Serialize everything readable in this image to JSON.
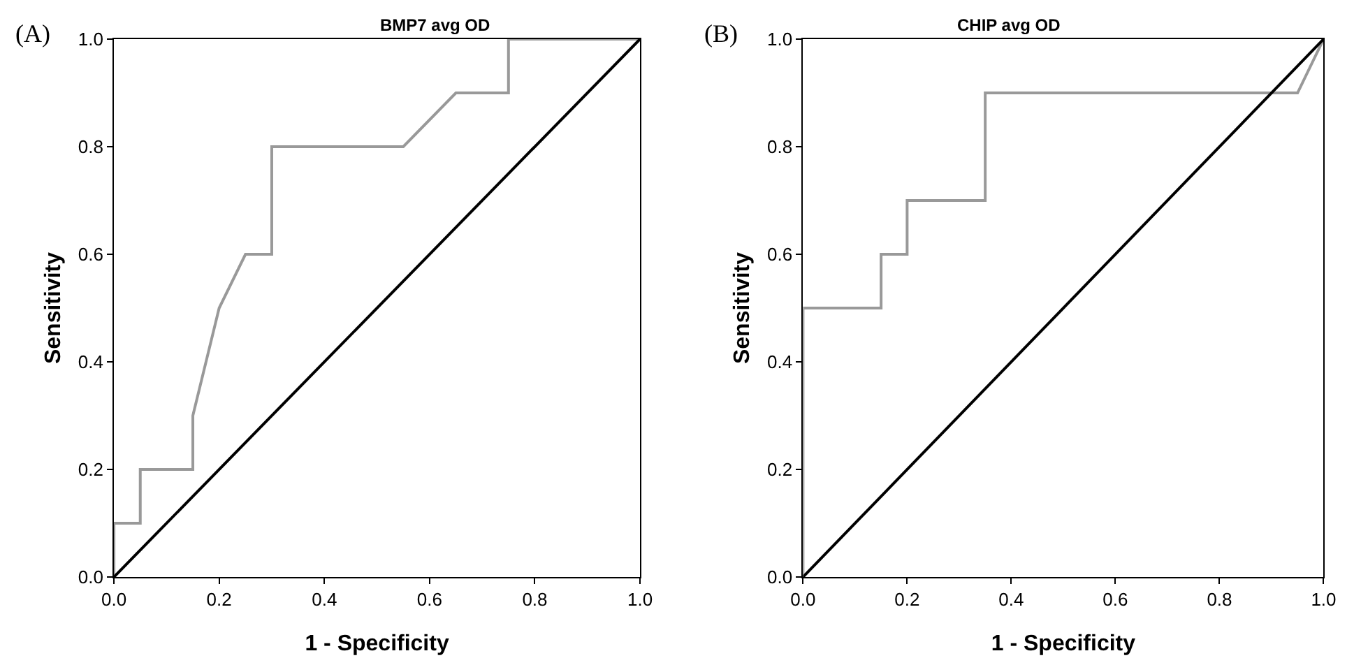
{
  "chart_data": [
    {
      "type": "line",
      "title": "BMP7 avg OD",
      "xlabel": "1 - Specificity",
      "ylabel": "Sensitivity",
      "annotations": [
        "(A)"
      ],
      "xlim": [
        0,
        1
      ],
      "ylim": [
        0,
        1
      ],
      "xticks": [
        {
          "value": 0,
          "label": "0.0"
        },
        {
          "value": 0.2,
          "label": "0.2"
        },
        {
          "value": 0.4,
          "label": "0.4"
        },
        {
          "value": 0.6,
          "label": "0.6"
        },
        {
          "value": 0.8,
          "label": "0.8"
        },
        {
          "value": 1,
          "label": "1.0"
        }
      ],
      "yticks": [
        {
          "value": 0,
          "label": "0.0"
        },
        {
          "value": 0.2,
          "label": "0.2"
        },
        {
          "value": 0.4,
          "label": "0.4"
        },
        {
          "value": 0.6,
          "label": "0.6"
        },
        {
          "value": 0.8,
          "label": "0.8"
        },
        {
          "value": 1,
          "label": "1.0"
        }
      ],
      "marker": "none",
      "line_style": "solid",
      "series": [
        {
          "color": "#999999",
          "x": [
            0,
            0,
            0.05,
            0.05,
            0.15,
            0.15,
            0.2,
            0.25,
            0.3,
            0.3,
            0.55,
            0.65,
            0.75,
            0.75,
            1
          ],
          "values": [
            0,
            0.1,
            0.1,
            0.2,
            0.2,
            0.3,
            0.5,
            0.6,
            0.6,
            0.8,
            0.8,
            0.9,
            0.9,
            1,
            1
          ]
        },
        {
          "color": "#000000",
          "x": [
            0,
            1
          ],
          "values": [
            0,
            1
          ]
        }
      ]
    },
    {
      "type": "line",
      "title": "CHIP avg OD",
      "xlabel": "1 - Specificity",
      "ylabel": "Sensitivity",
      "annotations": [
        "(B)"
      ],
      "xlim": [
        0,
        1
      ],
      "ylim": [
        0,
        1
      ],
      "xticks": [
        {
          "value": 0,
          "label": "0.0"
        },
        {
          "value": 0.2,
          "label": "0.2"
        },
        {
          "value": 0.4,
          "label": "0.4"
        },
        {
          "value": 0.6,
          "label": "0.6"
        },
        {
          "value": 0.8,
          "label": "0.8"
        },
        {
          "value": 1,
          "label": "1.0"
        }
      ],
      "yticks": [
        {
          "value": 0,
          "label": "0.0"
        },
        {
          "value": 0.2,
          "label": "0.2"
        },
        {
          "value": 0.4,
          "label": "0.4"
        },
        {
          "value": 0.6,
          "label": "0.6"
        },
        {
          "value": 0.8,
          "label": "0.8"
        },
        {
          "value": 1,
          "label": "1.0"
        }
      ],
      "marker": "none",
      "line_style": "solid",
      "series": [
        {
          "color": "#999999",
          "x": [
            0,
            0,
            0.15,
            0.15,
            0.2,
            0.2,
            0.35,
            0.35,
            0.95,
            1
          ],
          "values": [
            0,
            0.5,
            0.5,
            0.6,
            0.6,
            0.7,
            0.7,
            0.9,
            0.9,
            1
          ]
        },
        {
          "color": "#000000",
          "x": [
            0,
            1
          ],
          "values": [
            0,
            1
          ]
        }
      ]
    }
  ]
}
